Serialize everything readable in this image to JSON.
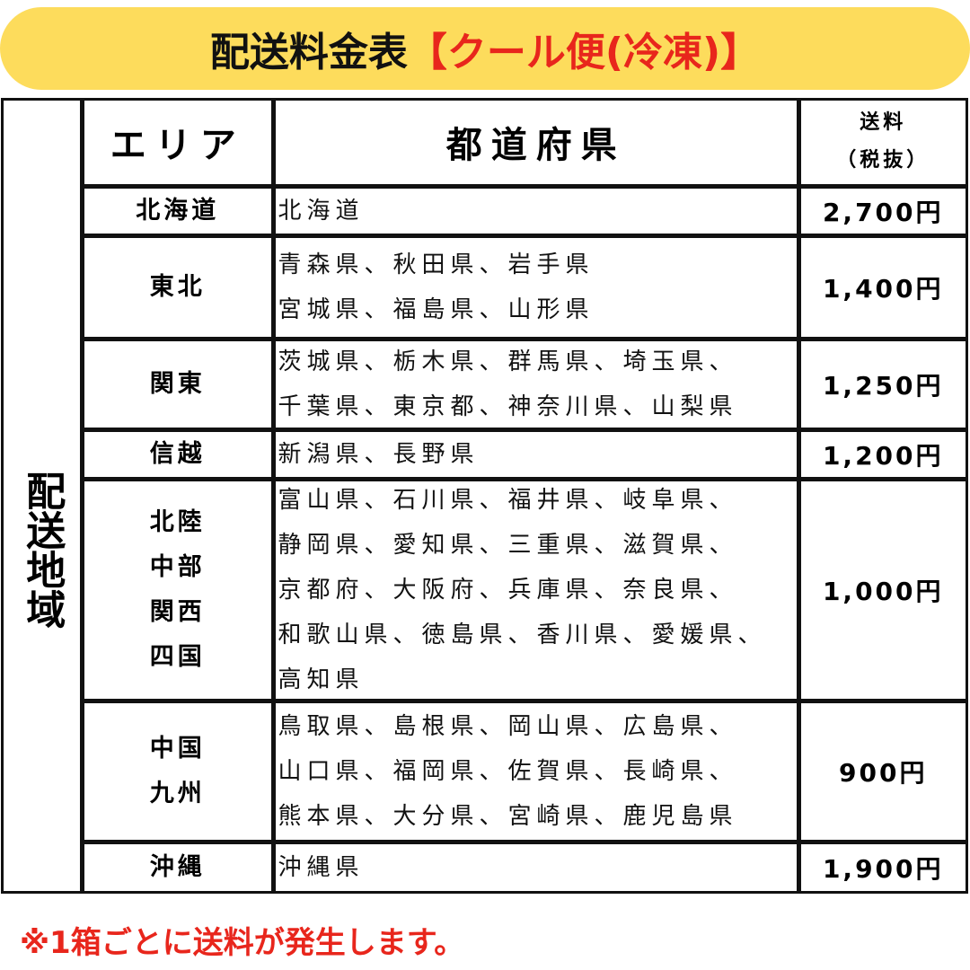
{
  "header": {
    "title": "配送料金表",
    "title_highlight": "【クール便(冷凍)】"
  },
  "side_label": "配送地域",
  "table": {
    "columns": [
      "エリア",
      "都道府県",
      [
        "送料",
        "（税抜）"
      ]
    ],
    "rows": [
      {
        "area": [
          "北海道"
        ],
        "prefectures": [
          "北海道"
        ],
        "price": "2,700円"
      },
      {
        "area": [
          "東北"
        ],
        "prefectures": [
          "青森県、秋田県、岩手県",
          "宮城県、福島県、山形県"
        ],
        "price": "1,400円"
      },
      {
        "area": [
          "関東"
        ],
        "prefectures": [
          "茨城県、栃木県、群馬県、埼玉県、",
          "千葉県、東京都、神奈川県、山梨県"
        ],
        "price": "1,250円"
      },
      {
        "area": [
          "信越"
        ],
        "prefectures": [
          "新潟県、長野県"
        ],
        "price": "1,200円"
      },
      {
        "area": [
          "北陸",
          "中部",
          "関西",
          "四国"
        ],
        "prefectures": [
          "富山県、石川県、福井県、岐阜県、",
          "静岡県、愛知県、三重県、滋賀県、",
          "京都府、大阪府、兵庫県、奈良県、",
          "和歌山県、徳島県、香川県、愛媛県、",
          "高知県"
        ],
        "price": "1,000円"
      },
      {
        "area": [
          "中国",
          "九州"
        ],
        "prefectures": [
          "鳥取県、島根県、岡山県、広島県、",
          "山口県、福岡県、佐賀県、長崎県、",
          "熊本県、大分県、宮崎県、鹿児島県"
        ],
        "price": "900円"
      },
      {
        "area": [
          "沖縄"
        ],
        "prefectures": [
          "沖縄県"
        ],
        "price": "1,900円"
      }
    ]
  },
  "footnote": "※1箱ごとに送料が発生します。"
}
